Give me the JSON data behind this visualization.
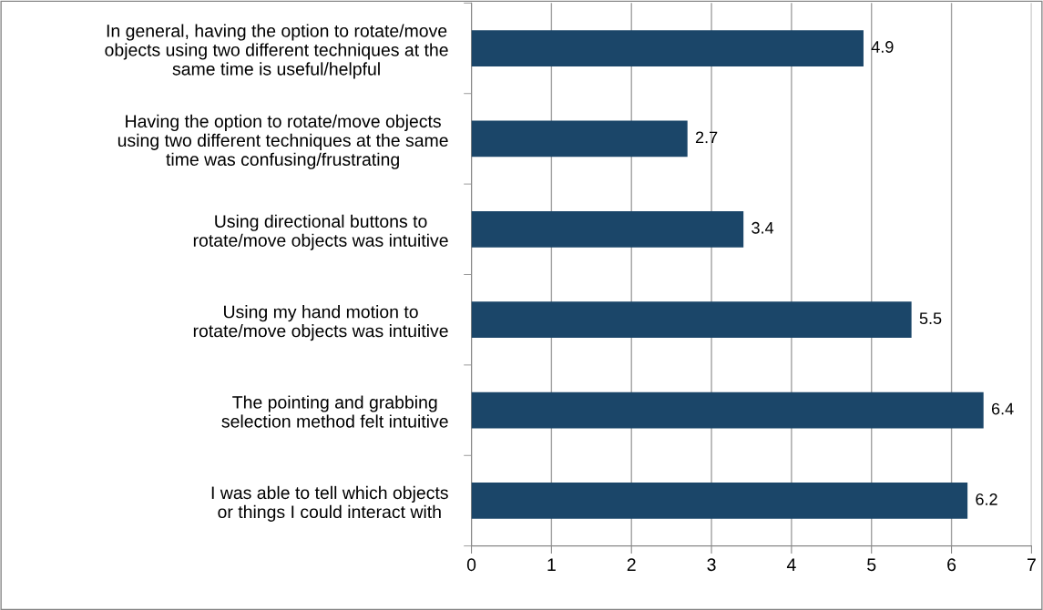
{
  "chart_data": {
    "type": "bar",
    "orientation": "horizontal",
    "categories": [
      "In general, having the option to rotate/move\nobjects using two different techniques at the\nsame time is useful/helpful",
      "Having the option to rotate/move objects\nusing two different techniques at the same\ntime was confusing/frustrating",
      "Using directional buttons to\nrotate/move objects was intuitive",
      "Using my hand motion to\nrotate/move objects was intuitive",
      "The pointing and grabbing\nselection method felt intuitive",
      "I was able to tell which objects\nor things I could interact with"
    ],
    "values": [
      4.9,
      2.7,
      3.4,
      5.5,
      6.4,
      6.2
    ],
    "color": "#1b4669",
    "xlim": [
      0,
      7
    ],
    "xticks": [
      0,
      1,
      2,
      3,
      4,
      5,
      6,
      7
    ],
    "grid": "x",
    "data_labels": true,
    "legend": false
  }
}
